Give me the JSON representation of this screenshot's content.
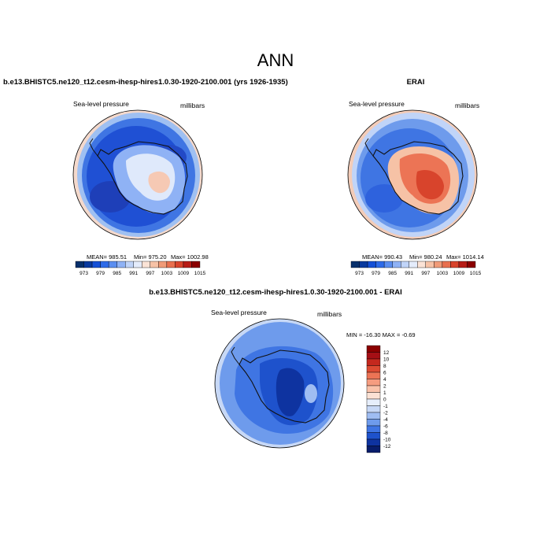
{
  "title": "ANN",
  "chart_data": [
    {
      "type": "heatmap",
      "title": "b.e13.BHISTC5.ne120_t12.cesm-ihesp-hires1.0.30-1920-2100.001 (yrs 1926-1935)",
      "variable": "Sea-level pressure",
      "units": "millibars",
      "projection": "south-polar-stereographic",
      "stats": {
        "mean": "985.51",
        "min": "975.20",
        "max": "1002.98"
      },
      "mean_label": "MEAN= 985.51",
      "min_label": "Min= 975.20",
      "max_label": "Max= 1002.98",
      "colorbar": {
        "orientation": "horizontal",
        "tick_labels": [
          "973",
          "979",
          "985",
          "991",
          "997",
          "1003",
          "1009",
          "1015"
        ],
        "colors": [
          "#08306b",
          "#0a3a9e",
          "#1550d6",
          "#2e6be8",
          "#5b8ef0",
          "#8fb2f5",
          "#c0d4f8",
          "#e4ecfb",
          "#fbe3d6",
          "#f6c2a6",
          "#f09b78",
          "#e8704f",
          "#d8442c",
          "#b71c16",
          "#8b0000"
        ]
      }
    },
    {
      "type": "heatmap",
      "title": "ERAI",
      "variable": "Sea-level pressure",
      "units": "millibars",
      "projection": "south-polar-stereographic",
      "stats": {
        "mean": "990.43",
        "min": "980.24",
        "max": "1014.14"
      },
      "mean_label": "MEAN= 990.43",
      "min_label": "Min= 980.24",
      "max_label": "Max= 1014.14",
      "colorbar": {
        "orientation": "horizontal",
        "tick_labels": [
          "973",
          "979",
          "985",
          "991",
          "997",
          "1003",
          "1009",
          "1015"
        ],
        "colors": [
          "#08306b",
          "#0a3a9e",
          "#1550d6",
          "#2e6be8",
          "#5b8ef0",
          "#8fb2f5",
          "#c0d4f8",
          "#e4ecfb",
          "#fbe3d6",
          "#f6c2a6",
          "#f09b78",
          "#e8704f",
          "#d8442c",
          "#b71c16",
          "#8b0000"
        ]
      }
    },
    {
      "type": "heatmap",
      "title": "b.e13.BHISTC5.ne120_t12.cesm-ihesp-hires1.0.30-1920-2100.001 - ERAI",
      "variable": "Sea-level pressure",
      "units": "millibars",
      "projection": "south-polar-stereographic",
      "stats": {
        "min": "-16.30",
        "max": "-0.69"
      },
      "minmax_label": "MIN = -16.30 MAX = -0.69",
      "colorbar": {
        "orientation": "vertical",
        "tick_labels": [
          "12",
          "10",
          "8",
          "6",
          "4",
          "2",
          "1",
          "0",
          "-1",
          "-2",
          "-4",
          "-6",
          "-8",
          "-10",
          "-12"
        ],
        "colors": [
          "#8b0000",
          "#a50f15",
          "#c4281e",
          "#dc4a32",
          "#ec7455",
          "#f59c80",
          "#f9c2aa",
          "#fbe1d4",
          "#e6eefb",
          "#c7d8f6",
          "#9fbdf2",
          "#6e9bec",
          "#3f75e3",
          "#1e52cc",
          "#0e33a0",
          "#081d6b"
        ]
      }
    }
  ]
}
